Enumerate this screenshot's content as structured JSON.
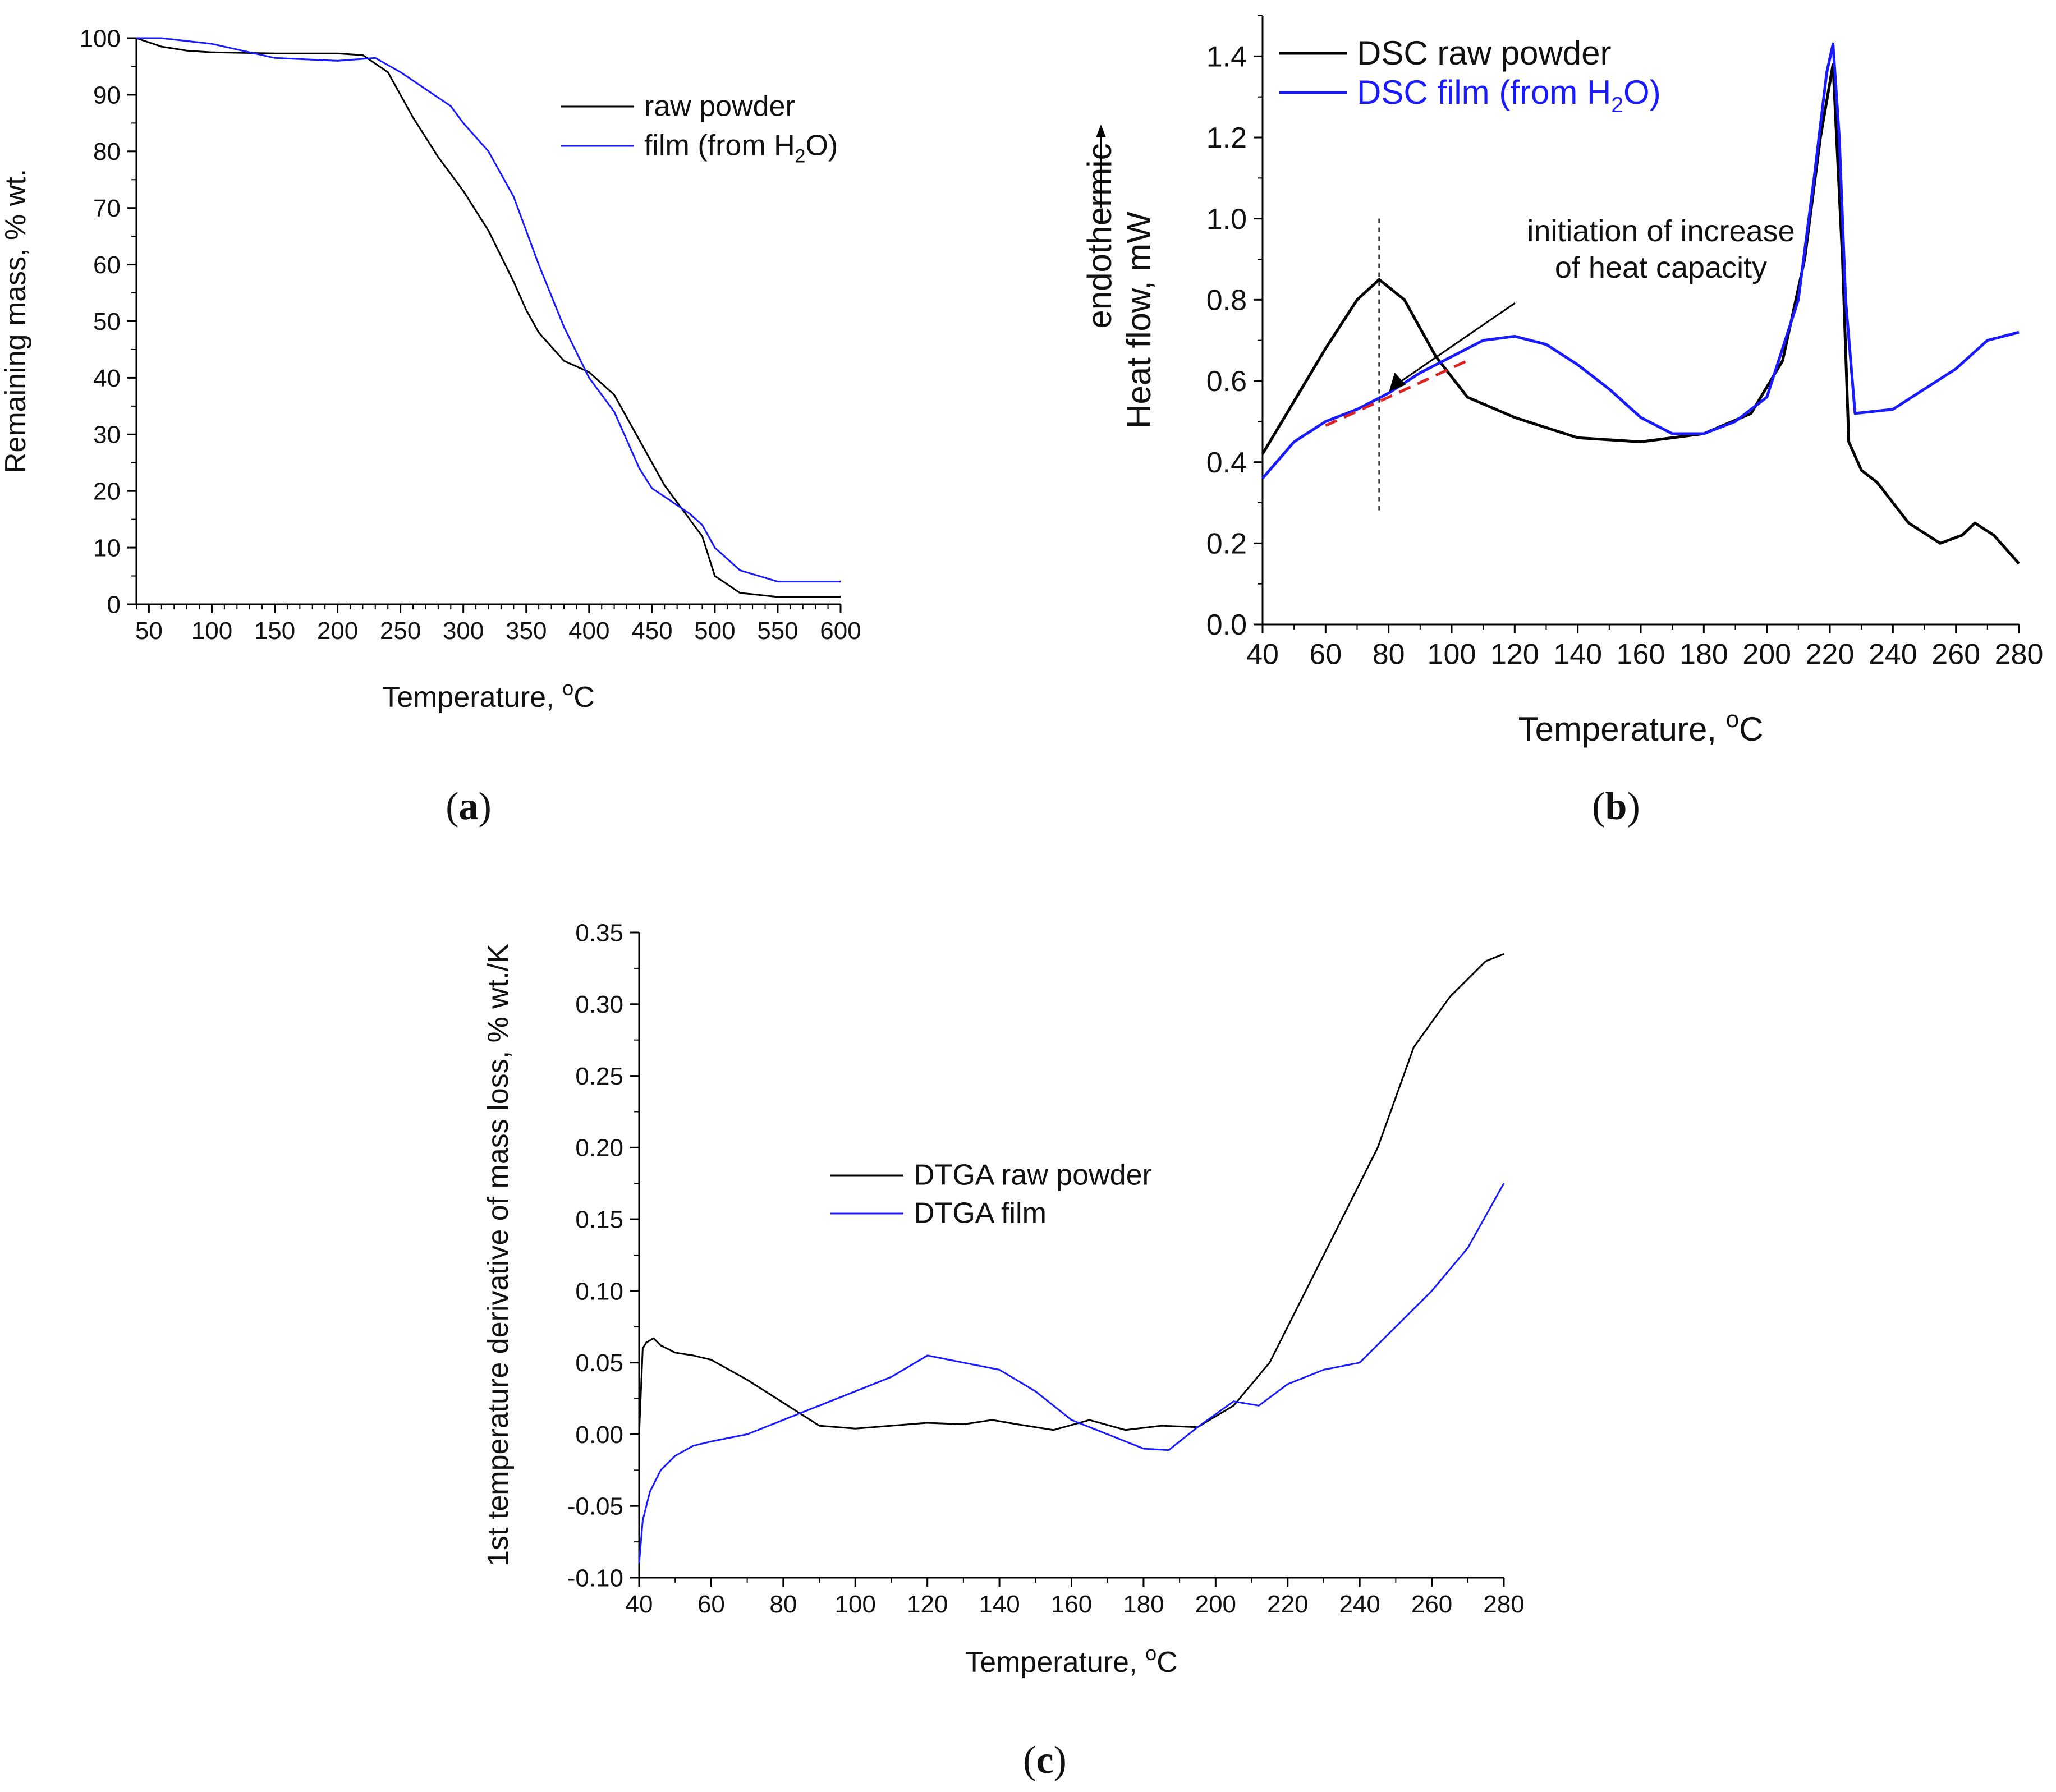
{
  "panels": {
    "a": {
      "label": "a"
    },
    "b": {
      "label": "b"
    },
    "c": {
      "label": "c"
    }
  },
  "chart_data": [
    {
      "id": "a",
      "type": "line",
      "xlabel": "Temperature, °C",
      "ylabel": "Remaining mass, % wt.",
      "xlim": [
        40,
        600
      ],
      "ylim": [
        0,
        100
      ],
      "xticks": [
        50,
        100,
        150,
        200,
        250,
        300,
        350,
        400,
        450,
        500,
        550,
        600
      ],
      "yticks": [
        0,
        10,
        20,
        30,
        40,
        50,
        60,
        70,
        80,
        90,
        100
      ],
      "legend": "top-right",
      "series": [
        {
          "name": "raw powder",
          "color": "#000000",
          "x": [
            40,
            60,
            80,
            100,
            150,
            200,
            220,
            240,
            260,
            280,
            300,
            320,
            340,
            350,
            360,
            380,
            400,
            420,
            440,
            460,
            480,
            490,
            500,
            520,
            550,
            600
          ],
          "y": [
            100,
            98.5,
            97.8,
            97.5,
            97.3,
            97.3,
            97,
            94,
            86,
            79,
            73,
            66,
            57,
            52,
            48,
            43,
            41,
            37,
            29,
            21,
            15,
            12,
            5,
            2,
            1.3,
            1.3
          ]
        },
        {
          "name": "film (from H2O)",
          "color": "#1a1aff",
          "x": [
            40,
            60,
            100,
            150,
            200,
            230,
            250,
            270,
            290,
            300,
            320,
            340,
            360,
            380,
            400,
            420,
            440,
            450,
            460,
            480,
            490,
            500,
            520,
            550,
            600
          ],
          "y": [
            100,
            100,
            99,
            96.5,
            96,
            96.5,
            94,
            91,
            88,
            85,
            80,
            72,
            60,
            49,
            40,
            34,
            24,
            20.5,
            19,
            16,
            14,
            10,
            6,
            4,
            4
          ]
        }
      ]
    },
    {
      "id": "b",
      "type": "line",
      "xlabel": "Temperature, °C",
      "ylabel": "Heat flow, mW",
      "ylabel2": "endothermic",
      "xlim": [
        40,
        280
      ],
      "ylim": [
        0,
        1.5
      ],
      "xticks": [
        40,
        60,
        80,
        100,
        120,
        140,
        160,
        180,
        200,
        220,
        240,
        260,
        280
      ],
      "yticks": [
        0.0,
        0.2,
        0.4,
        0.6,
        0.8,
        1.0,
        1.2,
        1.4
      ],
      "legend": "top-left",
      "annotation": {
        "lines": [
          "initiation of increase",
          "of heat capacity"
        ],
        "target": [
          78,
          0.56
        ]
      },
      "vline": 77,
      "series": [
        {
          "name": "DSC raw powder",
          "color": "#000000",
          "x": [
            40,
            50,
            60,
            70,
            77,
            85,
            95,
            105,
            120,
            140,
            160,
            180,
            195,
            205,
            212,
            217,
            221,
            224,
            226,
            230,
            235,
            245,
            255,
            262,
            266,
            272,
            280
          ],
          "y": [
            0.42,
            0.55,
            0.68,
            0.8,
            0.85,
            0.8,
            0.66,
            0.56,
            0.51,
            0.46,
            0.45,
            0.47,
            0.52,
            0.65,
            0.9,
            1.2,
            1.38,
            0.9,
            0.45,
            0.38,
            0.35,
            0.25,
            0.2,
            0.22,
            0.25,
            0.22,
            0.15
          ]
        },
        {
          "name": "DSC film (from H2O)",
          "color": "#1a1aff",
          "x": [
            40,
            50,
            60,
            70,
            80,
            90,
            100,
            110,
            120,
            130,
            140,
            150,
            160,
            170,
            180,
            190,
            200,
            210,
            215,
            219,
            221,
            223,
            225,
            228,
            240,
            250,
            260,
            270,
            280
          ],
          "y": [
            0.36,
            0.45,
            0.5,
            0.53,
            0.57,
            0.62,
            0.66,
            0.7,
            0.71,
            0.69,
            0.64,
            0.58,
            0.51,
            0.47,
            0.47,
            0.5,
            0.56,
            0.8,
            1.1,
            1.36,
            1.43,
            1.2,
            0.8,
            0.52,
            0.53,
            0.58,
            0.63,
            0.7,
            0.72
          ]
        },
        {
          "name": "baseline",
          "color": "#dd2222",
          "dashed": true,
          "x": [
            60,
            80,
            105
          ],
          "y": [
            0.49,
            0.56,
            0.65
          ]
        }
      ]
    },
    {
      "id": "c",
      "type": "line",
      "xlabel": "Temperature, °C",
      "ylabel": "1st temperature derivative of mass loss, % wt./K",
      "xlim": [
        40,
        280
      ],
      "ylim": [
        -0.1,
        0.35
      ],
      "xticks": [
        40,
        60,
        80,
        100,
        120,
        140,
        160,
        180,
        200,
        220,
        240,
        260,
        280
      ],
      "yticks": [
        -0.1,
        -0.05,
        0.0,
        0.05,
        0.1,
        0.15,
        0.2,
        0.25,
        0.3,
        0.35
      ],
      "legend": "center",
      "series": [
        {
          "name": "DTGA raw powder",
          "color": "#000000",
          "x": [
            40,
            41,
            42,
            44,
            46,
            50,
            55,
            60,
            70,
            80,
            90,
            100,
            110,
            120,
            130,
            138,
            145,
            155,
            165,
            175,
            185,
            195,
            205,
            215,
            225,
            235,
            245,
            255,
            265,
            275,
            280
          ],
          "y": [
            0.0,
            0.06,
            0.064,
            0.067,
            0.062,
            0.057,
            0.055,
            0.052,
            0.038,
            0.022,
            0.006,
            0.004,
            0.006,
            0.008,
            0.007,
            0.01,
            0.007,
            0.003,
            0.01,
            0.003,
            0.006,
            0.005,
            0.02,
            0.05,
            0.1,
            0.15,
            0.2,
            0.27,
            0.305,
            0.33,
            0.335
          ]
        },
        {
          "name": "DTGA film",
          "color": "#1a1aff",
          "x": [
            40,
            41,
            43,
            46,
            50,
            55,
            60,
            70,
            80,
            90,
            100,
            110,
            120,
            130,
            140,
            150,
            160,
            170,
            180,
            187,
            195,
            205,
            212,
            220,
            230,
            240,
            250,
            260,
            270,
            280
          ],
          "y": [
            -0.09,
            -0.06,
            -0.04,
            -0.025,
            -0.015,
            -0.008,
            -0.005,
            0.0,
            0.01,
            0.02,
            0.03,
            0.04,
            0.055,
            0.05,
            0.045,
            0.03,
            0.01,
            0.0,
            -0.01,
            -0.011,
            0.005,
            0.023,
            0.02,
            0.035,
            0.045,
            0.05,
            0.075,
            0.1,
            0.13,
            0.175
          ]
        }
      ]
    }
  ]
}
